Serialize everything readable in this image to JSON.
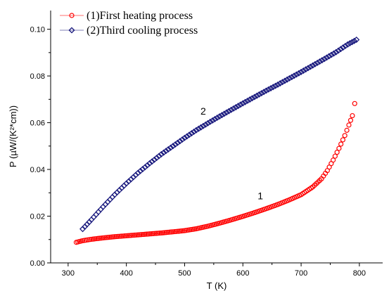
{
  "chart_data": {
    "type": "scatter",
    "xlabel": "T (K)",
    "ylabel": "P (µW/(K²*cm))",
    "xlim": [
      270,
      840
    ],
    "ylim": [
      0,
      0.108
    ],
    "x_ticks": [
      300,
      400,
      500,
      600,
      700,
      800
    ],
    "y_ticks": [
      0.0,
      0.02,
      0.04,
      0.06,
      0.08,
      0.1
    ],
    "x_tick_labels": [
      "300",
      "400",
      "500",
      "600",
      "700",
      "800"
    ],
    "y_tick_labels": [
      "0.00",
      "0.02",
      "0.04",
      "0.06",
      "0.08",
      "0.10"
    ],
    "grid": false,
    "legend_position": "top-left",
    "series": [
      {
        "name": "(1)First heating process",
        "color": "#ff0000",
        "marker": "circle",
        "points": [
          [
            314,
            0.0088
          ],
          [
            325,
            0.0095
          ],
          [
            340,
            0.0101
          ],
          [
            360,
            0.0107
          ],
          [
            380,
            0.0112
          ],
          [
            400,
            0.0116
          ],
          [
            420,
            0.012
          ],
          [
            440,
            0.0124
          ],
          [
            460,
            0.0128
          ],
          [
            480,
            0.0133
          ],
          [
            500,
            0.0138
          ],
          [
            520,
            0.0146
          ],
          [
            540,
            0.0157
          ],
          [
            560,
            0.017
          ],
          [
            580,
            0.0184
          ],
          [
            600,
            0.0199
          ],
          [
            620,
            0.0215
          ],
          [
            640,
            0.0232
          ],
          [
            660,
            0.025
          ],
          [
            680,
            0.027
          ],
          [
            700,
            0.0292
          ],
          [
            720,
            0.0325
          ],
          [
            735,
            0.036
          ],
          [
            745,
            0.0395
          ],
          [
            755,
            0.044
          ],
          [
            765,
            0.049
          ],
          [
            775,
            0.0545
          ],
          [
            782,
            0.059
          ],
          [
            788,
            0.063
          ],
          [
            792,
            0.0682
          ]
        ]
      },
      {
        "name": "(2)Third cooling process",
        "color": "#1a1a7e",
        "marker": "diamond",
        "points": [
          [
            325,
            0.0145
          ],
          [
            340,
            0.0185
          ],
          [
            360,
            0.024
          ],
          [
            380,
            0.0292
          ],
          [
            400,
            0.034
          ],
          [
            420,
            0.0385
          ],
          [
            440,
            0.0426
          ],
          [
            460,
            0.0465
          ],
          [
            480,
            0.05
          ],
          [
            500,
            0.0535
          ],
          [
            520,
            0.0568
          ],
          [
            540,
            0.0598
          ],
          [
            560,
            0.0627
          ],
          [
            580,
            0.0655
          ],
          [
            600,
            0.0683
          ],
          [
            620,
            0.071
          ],
          [
            640,
            0.0737
          ],
          [
            660,
            0.0763
          ],
          [
            680,
            0.079
          ],
          [
            700,
            0.0817
          ],
          [
            720,
            0.0845
          ],
          [
            740,
            0.0873
          ],
          [
            760,
            0.0902
          ],
          [
            780,
            0.0935
          ],
          [
            795,
            0.0955
          ]
        ]
      }
    ],
    "annotations": [
      {
        "text": "2",
        "x": 532,
        "y": 0.0635
      },
      {
        "text": "1",
        "x": 630,
        "y": 0.0272
      }
    ]
  }
}
